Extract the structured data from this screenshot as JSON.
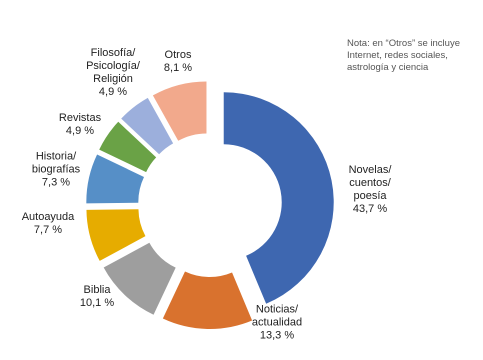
{
  "chart_data": {
    "type": "donut",
    "note": "Nota: en “Otros” se incluye Internet, redes sociales, astrología y ciencia",
    "categories": [
      "Novelas/ cuentos/ poesía",
      "Noticias/ actualidad",
      "Biblia",
      "Autoayuda",
      "Historia/ biografías",
      "Revistas",
      "Filosofía/ Psicología/ Religión",
      "Otros"
    ],
    "values": [
      43.7,
      13.3,
      10.1,
      7.7,
      7.3,
      4.9,
      4.9,
      8.1
    ],
    "value_labels": [
      "43,7 %",
      "13,3 %",
      "10,1 %",
      "7,7 %",
      "7,3 %",
      "4,9 %",
      "4,9 %",
      "8,1 %"
    ],
    "colors": [
      "#3e67b0",
      "#d9722e",
      "#9e9e9e",
      "#e6ac00",
      "#568fc7",
      "#6aa246",
      "#9cafdc",
      "#f2a98c"
    ]
  }
}
